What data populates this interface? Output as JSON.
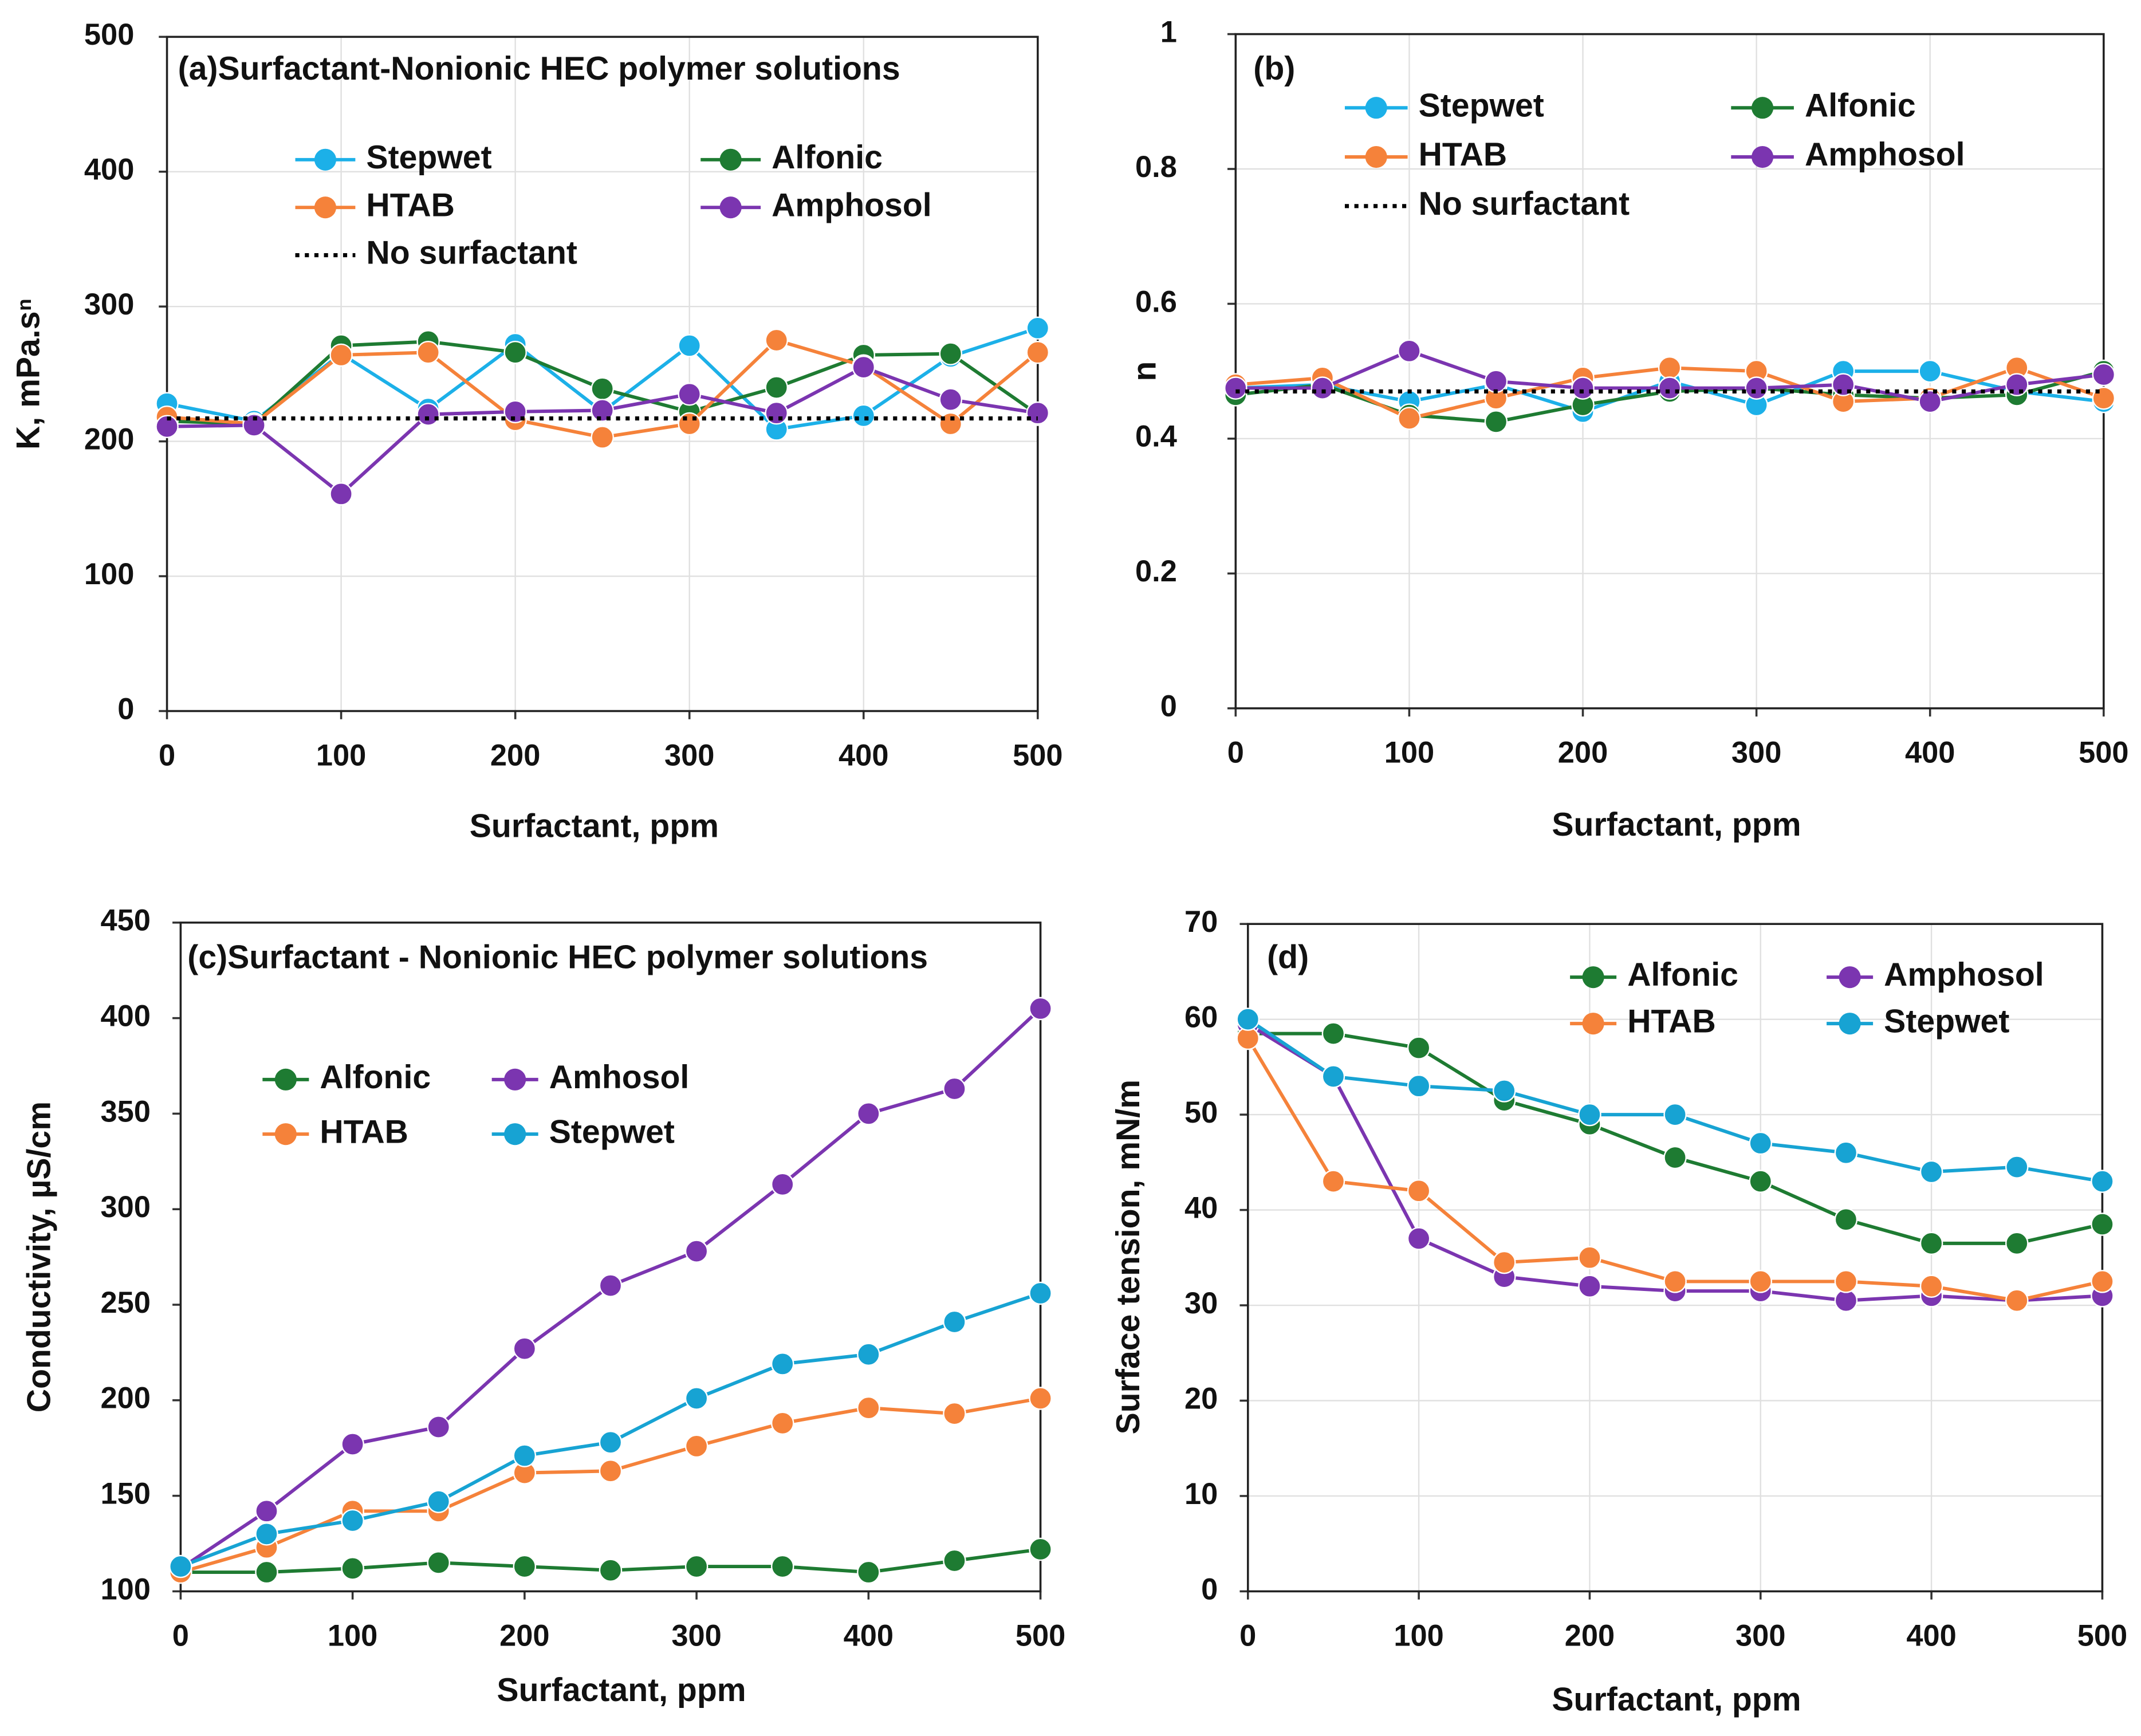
{
  "chart_data": [
    {
      "type": "line",
      "title": "(a)Surfactant-Nonionic HEC polymer solutions",
      "x_label": "Surfactant, ppm",
      "y_label": "K, mPa.sⁿ",
      "x": [
        0,
        50,
        100,
        150,
        200,
        250,
        300,
        350,
        400,
        450,
        500
      ],
      "xlim": [
        0,
        500
      ],
      "xticks": [
        0,
        100,
        200,
        300,
        400,
        500
      ],
      "ylim": [
        0,
        500
      ],
      "yticks": [
        0,
        100,
        200,
        300,
        400,
        500
      ],
      "grid": true,
      "series": [
        {
          "name": "Stepwet",
          "color": "#1cb0e8",
          "values": [
            228,
            215,
            265,
            224,
            272,
            222,
            271,
            209,
            219,
            263,
            284
          ]
        },
        {
          "name": "Alfonic",
          "color": "#1e7b32",
          "values": [
            215,
            213,
            271,
            274,
            266,
            239,
            222,
            240,
            264,
            265,
            220
          ]
        },
        {
          "name": "HTAB",
          "color": "#f5823a",
          "values": [
            218,
            213,
            264,
            266,
            216,
            203,
            213,
            275,
            256,
            213,
            266
          ]
        },
        {
          "name": "Amphosol",
          "color": "#7b35b0",
          "values": [
            211,
            212,
            161,
            220,
            222,
            223,
            235,
            221,
            255,
            231,
            221
          ]
        },
        {
          "name": "No surfactant",
          "color": "#000000",
          "linestyle": "dotted",
          "values": [
            217,
            217,
            217,
            217,
            217,
            217,
            217,
            217,
            217,
            217,
            217
          ]
        }
      ]
    },
    {
      "type": "line",
      "title": "(b)",
      "x_label": "Surfactant, ppm",
      "y_label": "n",
      "x": [
        0,
        50,
        100,
        150,
        200,
        250,
        300,
        350,
        400,
        450,
        500
      ],
      "xlim": [
        0,
        500
      ],
      "xticks": [
        0,
        100,
        200,
        300,
        400,
        500
      ],
      "ylim": [
        0,
        1
      ],
      "yticks": [
        0,
        0.2,
        0.4,
        0.6,
        0.8,
        1
      ],
      "grid": true,
      "series": [
        {
          "name": "Stepwet",
          "color": "#1cb0e8",
          "values": [
            0.475,
            0.48,
            0.455,
            0.48,
            0.44,
            0.485,
            0.45,
            0.5,
            0.5,
            0.47,
            0.455
          ]
        },
        {
          "name": "Alfonic",
          "color": "#1e7b32",
          "values": [
            0.465,
            0.48,
            0.435,
            0.425,
            0.45,
            0.47,
            0.475,
            0.465,
            0.46,
            0.465,
            0.5
          ]
        },
        {
          "name": "HTAB",
          "color": "#f5823a",
          "values": [
            0.48,
            0.49,
            0.43,
            0.46,
            0.49,
            0.505,
            0.5,
            0.455,
            0.46,
            0.505,
            0.46
          ]
        },
        {
          "name": "Amphosol",
          "color": "#7b35b0",
          "values": [
            0.475,
            0.475,
            0.53,
            0.485,
            0.475,
            0.475,
            0.475,
            0.48,
            0.455,
            0.48,
            0.495
          ]
        },
        {
          "name": "No surfactant",
          "color": "#000000",
          "linestyle": "dotted",
          "values": [
            0.47,
            0.47,
            0.47,
            0.47,
            0.47,
            0.47,
            0.47,
            0.47,
            0.47,
            0.47,
            0.47
          ]
        }
      ]
    },
    {
      "type": "line",
      "title": "(c)Surfactant - Nonionic HEC polymer solutions",
      "x_label": "Surfactant, ppm",
      "y_label": "Conductivity, µS/cm",
      "x": [
        0,
        50,
        100,
        150,
        200,
        250,
        300,
        350,
        400,
        450,
        500
      ],
      "xlim": [
        0,
        500
      ],
      "xticks": [
        0,
        100,
        200,
        300,
        400,
        500
      ],
      "ylim": [
        100,
        450
      ],
      "yticks": [
        100,
        150,
        200,
        250,
        300,
        350,
        400,
        450
      ],
      "grid": false,
      "series": [
        {
          "name": "Alfonic",
          "color": "#1e7b32",
          "values": [
            110,
            110,
            112,
            115,
            113,
            111,
            113,
            113,
            110,
            116,
            122
          ]
        },
        {
          "name": "Amhosol",
          "color": "#7b35b0",
          "values": [
            112,
            142,
            177,
            186,
            227,
            260,
            278,
            313,
            350,
            363,
            405
          ]
        },
        {
          "name": "HTAB",
          "color": "#f5823a",
          "values": [
            110,
            123,
            142,
            142,
            162,
            163,
            176,
            188,
            196,
            193,
            201
          ]
        },
        {
          "name": "Stepwet",
          "color": "#17a3d3",
          "values": [
            113,
            130,
            137,
            147,
            171,
            178,
            201,
            219,
            224,
            241,
            256
          ]
        }
      ]
    },
    {
      "type": "line",
      "title": "(d)",
      "x_label": "Surfactant, ppm",
      "y_label": "Surface tension, mN/m",
      "x": [
        0,
        50,
        100,
        150,
        200,
        250,
        300,
        350,
        400,
        450,
        500
      ],
      "xlim": [
        0,
        500
      ],
      "xticks": [
        0,
        100,
        200,
        300,
        400,
        500
      ],
      "ylim": [
        0,
        70
      ],
      "yticks": [
        0,
        10,
        20,
        30,
        40,
        50,
        60,
        70
      ],
      "grid": true,
      "series": [
        {
          "name": "Alfonic",
          "color": "#1e7b32",
          "values": [
            58.5,
            58.5,
            57,
            51.5,
            49,
            45.5,
            43,
            39,
            36.5,
            36.5,
            38.5
          ]
        },
        {
          "name": "Amphosol",
          "color": "#7b35b0",
          "values": [
            59.5,
            54,
            37,
            33,
            32,
            31.5,
            31.5,
            30.5,
            31,
            30.5,
            31
          ]
        },
        {
          "name": "HTAB",
          "color": "#f5823a",
          "values": [
            58,
            43,
            42,
            34.5,
            35,
            32.5,
            32.5,
            32.5,
            32,
            30.5,
            32.5
          ]
        },
        {
          "name": "Stepwet",
          "color": "#17a3d3",
          "values": [
            60,
            54,
            53,
            52.5,
            50,
            50,
            47,
            46,
            44,
            44.5,
            43
          ]
        }
      ]
    }
  ]
}
